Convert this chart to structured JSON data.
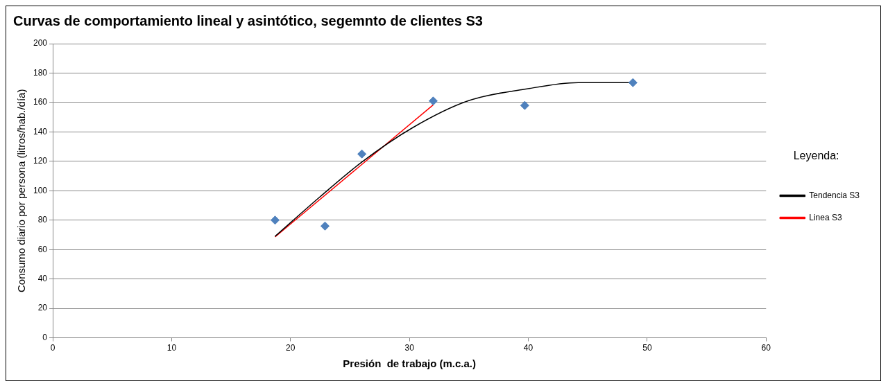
{
  "chart_data": {
    "type": "scatter",
    "title": "Curvas de comportamiento lineal y asintótico, segemnto de clientes S3",
    "xlabel": "Presión  de trabajo (m.c.a.)",
    "ylabel": "Consumo diario por persona (litros/hab./día)",
    "legend_title": "Leyenda:",
    "legend": "right",
    "grid": "y",
    "xlim": [
      0,
      60
    ],
    "xticks": [
      0,
      10,
      20,
      30,
      40,
      50,
      60
    ],
    "ylim": [
      0,
      200
    ],
    "yticks": [
      0,
      20,
      40,
      60,
      80,
      100,
      120,
      140,
      160,
      180,
      200
    ],
    "series": [
      {
        "marker": "diamond",
        "color": "#4f81bd",
        "x": [
          18.7,
          22.9,
          26.0,
          32.0,
          39.7,
          48.8
        ],
        "values": [
          80,
          76,
          125,
          161,
          158,
          173.5
        ]
      },
      {
        "type": "line",
        "marker": "none",
        "name": "Tendencia S3",
        "color": "#000000",
        "x": [
          18.7,
          22.5,
          26.0,
          30.3,
          34.9,
          39.7,
          44.2,
          48.8
        ],
        "values": [
          69,
          96,
          119.5,
          143,
          161,
          169,
          173.5,
          173.5
        ]
      },
      {
        "type": "line",
        "marker": "none",
        "name": "Linea S3",
        "color": "#ff0000",
        "x": [
          18.7,
          32.0
        ],
        "values": [
          68.6,
          158.4
        ]
      }
    ]
  }
}
